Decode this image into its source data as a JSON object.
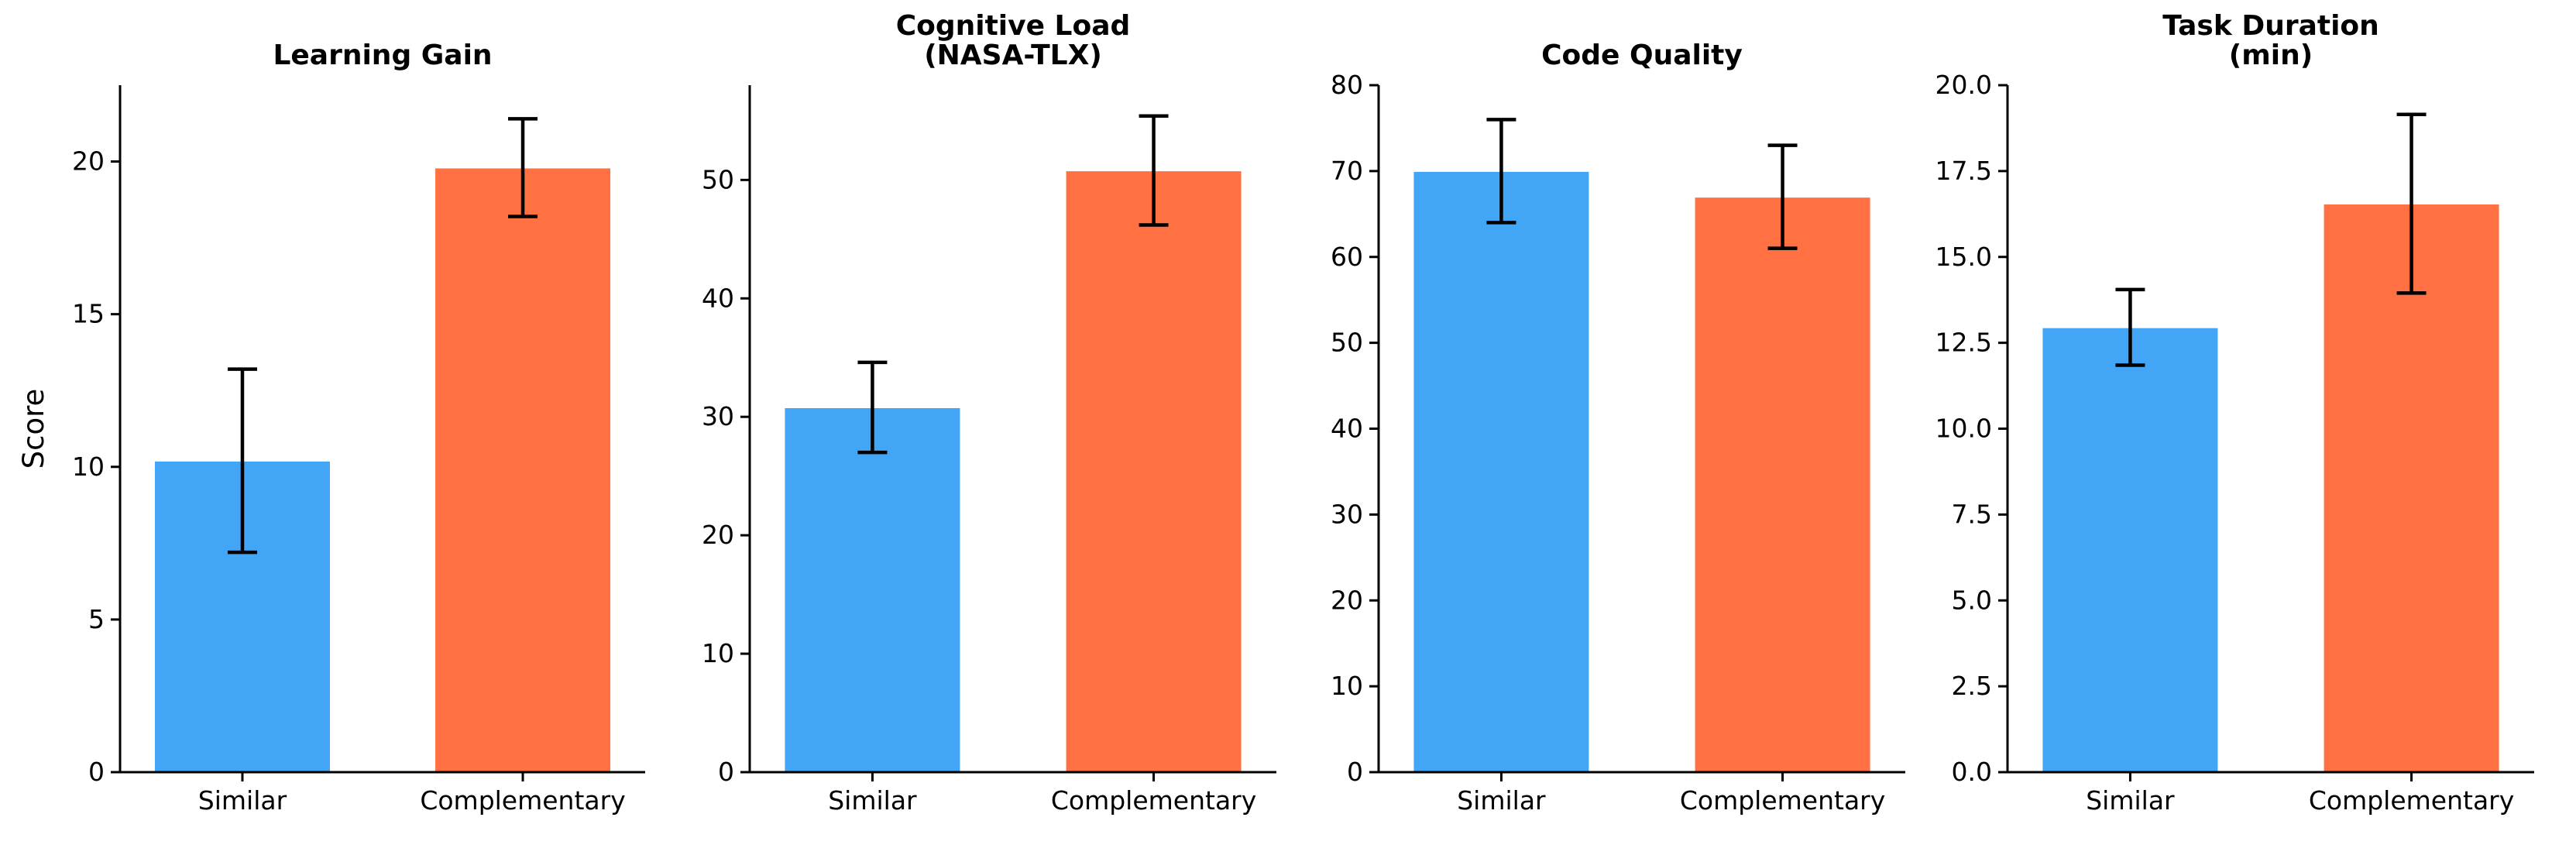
{
  "colors": {
    "similar": "#42A5F5",
    "complementary": "#FF7043",
    "axis": "#000000"
  },
  "chart_data": [
    {
      "type": "bar",
      "title": "Learning Gain",
      "ylabel": "Score",
      "categories": [
        "Similar",
        "Complementary"
      ],
      "values": [
        10.2,
        19.8
      ],
      "errors": [
        3.0,
        1.6
      ],
      "ylim": [
        0,
        22.5
      ],
      "yticks": [
        0,
        5,
        10,
        15,
        20
      ],
      "ytick_labels": [
        "0",
        "5",
        "10",
        "15",
        "20"
      ]
    },
    {
      "type": "bar",
      "title": "Cognitive Load\n(NASA-TLX)",
      "ylabel": "",
      "categories": [
        "Similar",
        "Complementary"
      ],
      "values": [
        30.8,
        50.8
      ],
      "errors": [
        3.8,
        4.6
      ],
      "ylim": [
        0,
        58
      ],
      "yticks": [
        0,
        10,
        20,
        30,
        40,
        50
      ],
      "ytick_labels": [
        "0",
        "10",
        "20",
        "30",
        "40",
        "50"
      ]
    },
    {
      "type": "bar",
      "title": "Code Quality",
      "ylabel": "",
      "categories": [
        "Similar",
        "Complementary"
      ],
      "values": [
        70.0,
        67.0
      ],
      "errors": [
        6.0,
        6.0
      ],
      "ylim": [
        0,
        80
      ],
      "yticks": [
        0,
        10,
        20,
        30,
        40,
        50,
        60,
        70,
        80
      ],
      "ytick_labels": [
        "0",
        "10",
        "20",
        "30",
        "40",
        "50",
        "60",
        "70",
        "80"
      ]
    },
    {
      "type": "bar",
      "title": "Task Duration\n(min)",
      "ylabel": "",
      "categories": [
        "Similar",
        "Complementary"
      ],
      "values": [
        12.95,
        16.55
      ],
      "errors": [
        1.1,
        2.6
      ],
      "ylim": [
        0,
        20
      ],
      "yticks": [
        0,
        2.5,
        5,
        7.5,
        10,
        12.5,
        15,
        17.5,
        20
      ],
      "ytick_labels": [
        "0.0",
        "2.5",
        "5.0",
        "7.5",
        "10.0",
        "12.5",
        "15.0",
        "17.5",
        "20.0"
      ]
    }
  ]
}
